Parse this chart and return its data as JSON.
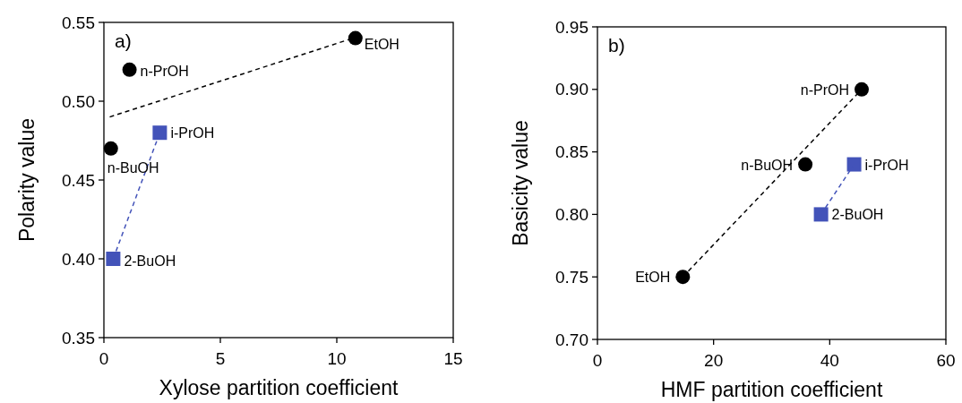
{
  "chart_data": [
    {
      "type": "scatter",
      "xlabel": "Xylose partition coefficient",
      "ylabel": "Polarity value",
      "xlim": [
        0,
        15
      ],
      "xticks": [
        0,
        5,
        10,
        15
      ],
      "ylim": [
        0.35,
        0.55
      ],
      "yticks": [
        {
          "value": 0.35,
          "label": "0.35"
        },
        {
          "value": 0.4,
          "label": "0.40"
        },
        {
          "value": 0.45,
          "label": "0.45"
        },
        {
          "value": 0.5,
          "label": "0.50"
        },
        {
          "value": 0.55,
          "label": "0.55"
        }
      ],
      "grid": false,
      "series": [
        {
          "marker": "circle",
          "color": "#000000",
          "x": [
            10.8,
            1.1,
            0.3
          ],
          "values": [
            0.54,
            0.52,
            0.47
          ]
        },
        {
          "marker": "square",
          "color": "#4353b9",
          "x": [
            2.4,
            0.4
          ],
          "values": [
            0.48,
            0.4
          ]
        },
        {
          "type": "line",
          "marker": "none",
          "line_style": "dashed",
          "color": "#000000",
          "x": [
            0.25,
            10.7
          ],
          "values": [
            0.49,
            0.54
          ]
        },
        {
          "type": "line",
          "marker": "none",
          "line_style": "dashed",
          "color": "#4353b9",
          "x": [
            0.4,
            2.4
          ],
          "values": [
            0.4,
            0.48
          ]
        }
      ],
      "annotations": [
        "a)",
        {
          "text": "EtOH",
          "x": 10.8,
          "y": 0.54
        },
        {
          "text": "n-PrOH",
          "x": 1.1,
          "y": 0.52
        },
        {
          "text": "n-BuOH",
          "x": 0.3,
          "y": 0.47
        },
        {
          "text": "i-PrOH",
          "x": 2.4,
          "y": 0.48
        },
        {
          "text": "2-BuOH",
          "x": 0.4,
          "y": 0.4
        }
      ]
    },
    {
      "type": "scatter",
      "xlabel": "HMF partition coefficient",
      "ylabel": "Basicity value",
      "xlim": [
        0,
        60
      ],
      "xticks": [
        0,
        20,
        40,
        60
      ],
      "ylim": [
        0.7,
        0.95
      ],
      "yticks": [
        {
          "value": 0.7,
          "label": "0.70"
        },
        {
          "value": 0.75,
          "label": "0.75"
        },
        {
          "value": 0.8,
          "label": "0.80"
        },
        {
          "value": 0.85,
          "label": "0.85"
        },
        {
          "value": 0.9,
          "label": "0.90"
        },
        {
          "value": 0.95,
          "label": "0.95"
        }
      ],
      "grid": false,
      "series": [
        {
          "marker": "circle",
          "color": "#000000",
          "x": [
            45.5,
            35.8,
            14.7
          ],
          "values": [
            0.9,
            0.84,
            0.75
          ]
        },
        {
          "marker": "square",
          "color": "#4353b9",
          "x": [
            44.2,
            38.5
          ],
          "values": [
            0.84,
            0.8
          ]
        },
        {
          "type": "line",
          "marker": "none",
          "line_style": "dashed",
          "color": "#000000",
          "x": [
            14.7,
            45.5
          ],
          "values": [
            0.75,
            0.9
          ]
        },
        {
          "type": "line",
          "marker": "none",
          "line_style": "dashed",
          "color": "#4353b9",
          "x": [
            38.5,
            44.2
          ],
          "values": [
            0.8,
            0.84
          ]
        }
      ],
      "annotations": [
        "b)",
        {
          "text": "n-PrOH",
          "x": 45.5,
          "y": 0.9
        },
        {
          "text": "n-BuOH",
          "x": 35.8,
          "y": 0.84
        },
        {
          "text": "EtOH",
          "x": 14.7,
          "y": 0.75
        },
        {
          "text": "i-PrOH",
          "x": 44.2,
          "y": 0.84
        },
        {
          "text": "2-BuOH",
          "x": 38.5,
          "y": 0.8
        }
      ]
    }
  ]
}
